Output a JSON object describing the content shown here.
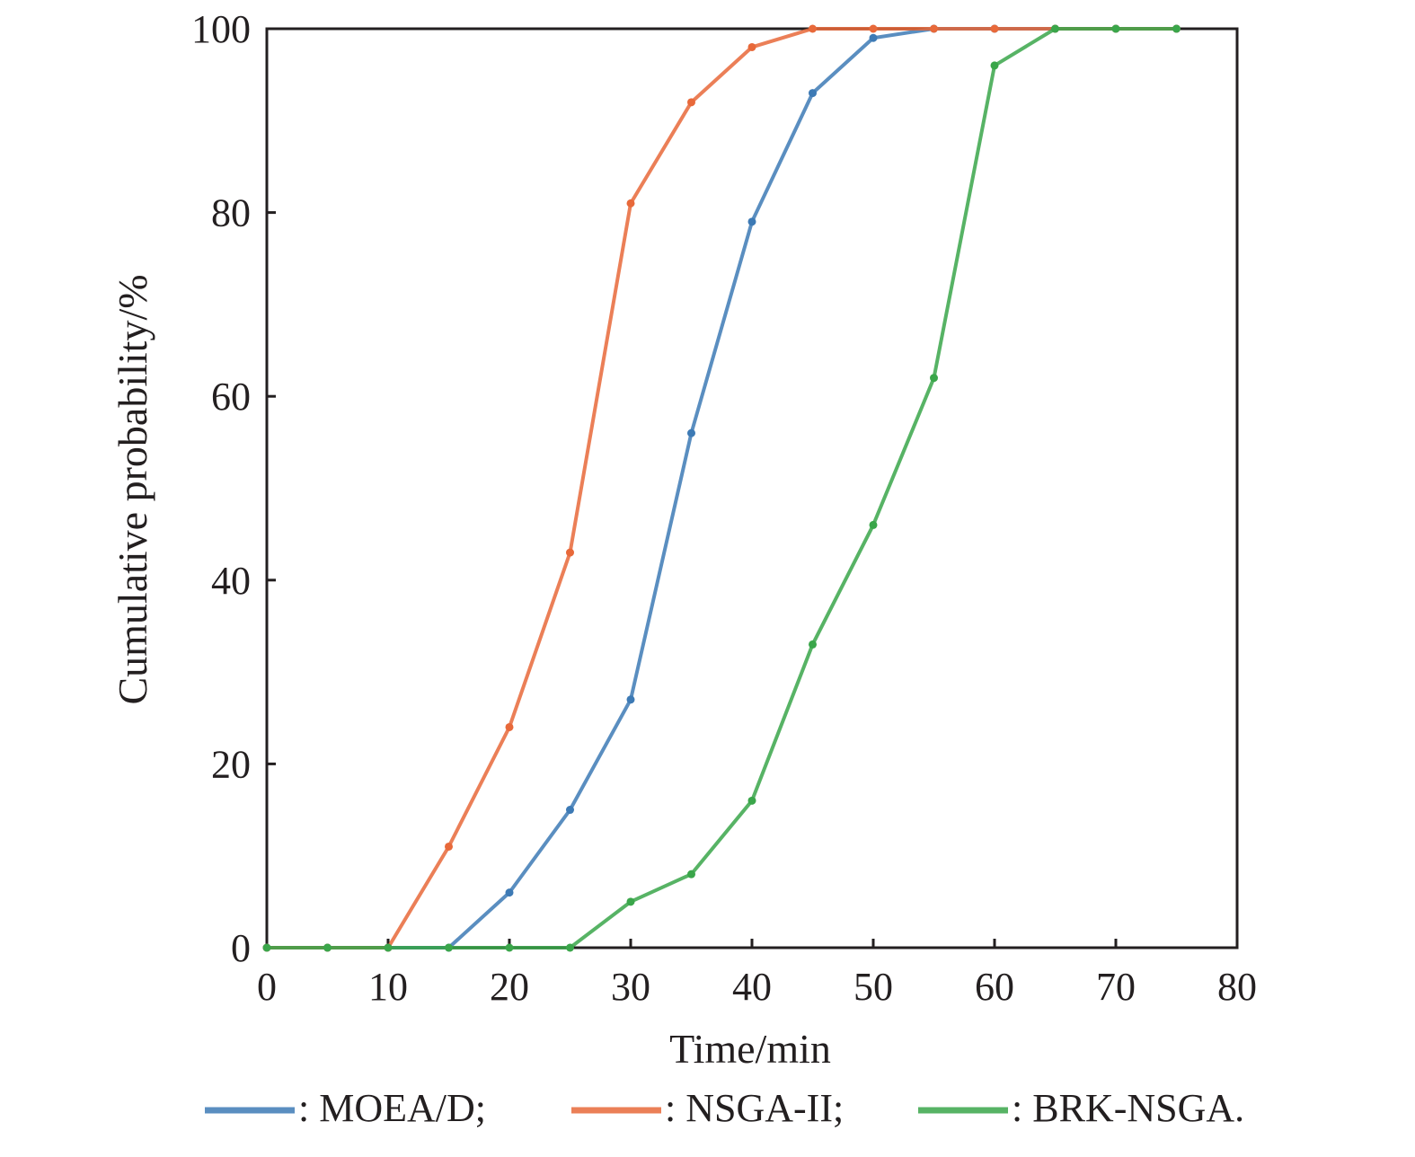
{
  "chart_data": {
    "type": "line",
    "xlabel": "Time/min",
    "ylabel": "Cumulative probability/%",
    "xlim": [
      0,
      80
    ],
    "ylim": [
      0,
      100
    ],
    "xticks": [
      0,
      10,
      20,
      30,
      40,
      50,
      60,
      70,
      80
    ],
    "yticks": [
      0,
      20,
      40,
      60,
      80,
      100
    ],
    "grid": false,
    "legend_position": "bottom",
    "x": [
      0,
      5,
      10,
      15,
      20,
      25,
      30,
      35,
      40,
      45,
      50,
      55,
      60,
      65,
      70,
      75
    ],
    "series": [
      {
        "name": "MOEA/D",
        "legend_label": ": MOEA/D;",
        "color": "#3d7ab5",
        "values": [
          0,
          0,
          0,
          0,
          6,
          15,
          27,
          56,
          79,
          93,
          99,
          100,
          100,
          100,
          100,
          100
        ]
      },
      {
        "name": "NSGA-II",
        "legend_label": ": NSGA-II;",
        "color": "#e8693a",
        "values": [
          0,
          0,
          0,
          11,
          24,
          43,
          81,
          92,
          98,
          100,
          100,
          100,
          100,
          100,
          100,
          100
        ]
      },
      {
        "name": "BRK-NSGA",
        "legend_label": ": BRK-NSGA.",
        "color": "#3aa64a",
        "values": [
          0,
          0,
          0,
          0,
          0,
          0,
          5,
          8,
          16,
          33,
          46,
          62,
          96,
          100,
          100,
          100
        ]
      }
    ]
  }
}
